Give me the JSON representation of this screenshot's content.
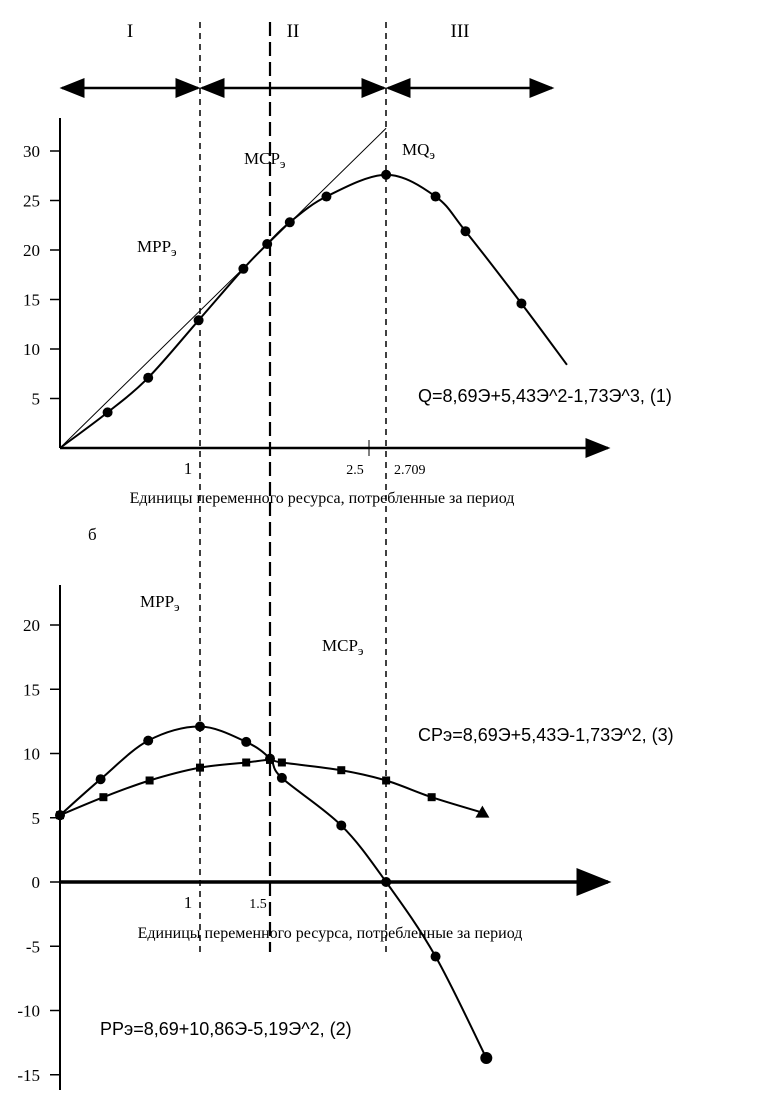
{
  "chart_data": [
    {
      "type": "line",
      "title": "",
      "regions": [
        {
          "label": "I",
          "from": 0,
          "to": 1
        },
        {
          "label": "II",
          "from": 1,
          "to": 2.709
        },
        {
          "label": "III",
          "from": 2.709,
          "to": 4
        }
      ],
      "xlabel": "Единицы переменного ресурса, потребленные за период",
      "ylabel": "",
      "ylim": [
        0,
        33
      ],
      "yticks": [
        5,
        10,
        15,
        20,
        25,
        30
      ],
      "xtick_labels": [
        {
          "x": 1,
          "label": "1"
        },
        {
          "x": 2.5,
          "label": "2.5"
        },
        {
          "x": 2.709,
          "label": "2.709"
        }
      ],
      "vlines": [
        {
          "x": 1,
          "style": "short-dash"
        },
        {
          "x": 1.5,
          "style": "long-dash"
        },
        {
          "x": 2.709,
          "style": "short-dash"
        }
      ],
      "annotations": [
        {
          "text": "MPP",
          "sub": "э"
        },
        {
          "text": "MCP",
          "sub": "э"
        },
        {
          "text": "MQ",
          "sub": "э"
        }
      ],
      "formula": "Q=8,69Э+5,43Э^2-1,73Э^3, (1)",
      "series": [
        {
          "name": "Q",
          "marker": "circle",
          "x": [
            0,
            0.34,
            0.63,
            0.99,
            1.31,
            1.48,
            1.7,
            2.07,
            2.71,
            3.09,
            3.32,
            3.75,
            4.1
          ],
          "y": [
            0,
            3.6,
            7.1,
            12.9,
            18.1,
            20.6,
            22.8,
            25.4,
            27.6,
            25.4,
            21.9,
            14.6,
            8.4
          ],
          "markers_at": [
            1,
            2,
            3,
            4,
            5,
            6,
            7,
            8,
            9,
            10,
            11
          ]
        },
        {
          "name": "tangent",
          "marker": "none",
          "x": [
            0,
            2.71
          ],
          "y": [
            0,
            32.3
          ]
        }
      ]
    },
    {
      "type": "line",
      "panel_label": "б",
      "xlabel": "Единицы переменного ресурса, потребленные за период",
      "ylabel": "",
      "ylim": [
        -15,
        22
      ],
      "yticks": [
        20,
        15,
        10,
        5,
        0,
        -5,
        -10,
        -15
      ],
      "xtick_labels": [
        {
          "x": 1,
          "label": "1"
        },
        {
          "x": 1.5,
          "label": "1.5"
        }
      ],
      "vlines": [
        {
          "x": 1,
          "style": "short-dash"
        },
        {
          "x": 1.5,
          "style": "long-dash"
        },
        {
          "x": 2.709,
          "style": "short-dash"
        }
      ],
      "annotations": [
        {
          "text": "MPP",
          "sub": "э"
        },
        {
          "text": "MCP",
          "sub": "э"
        }
      ],
      "formulas": [
        "CPэ=8,69Э+5,43Э-1,73Э^2, (3)",
        "PPэ=8,69+10,86Э-5,19Э^2, (2)"
      ],
      "series": [
        {
          "name": "PPэ",
          "marker": "circle",
          "x": [
            0,
            0.29,
            0.63,
            1.0,
            1.33,
            1.5,
            1.62,
            2.22,
            2.71,
            3.09,
            3.48
          ],
          "y": [
            5.2,
            8.0,
            11.0,
            12.1,
            10.9,
            9.6,
            8.1,
            4.4,
            0,
            -5.8,
            -13.7
          ]
        },
        {
          "name": "CPэ",
          "marker": "square",
          "x": [
            0,
            0.31,
            0.64,
            1.0,
            1.33,
            1.5,
            1.62,
            2.22,
            2.71,
            3.06,
            3.45
          ],
          "y": [
            5.2,
            6.6,
            7.9,
            8.9,
            9.3,
            9.5,
            9.3,
            8.7,
            7.9,
            6.6,
            5.4
          ]
        }
      ]
    }
  ]
}
